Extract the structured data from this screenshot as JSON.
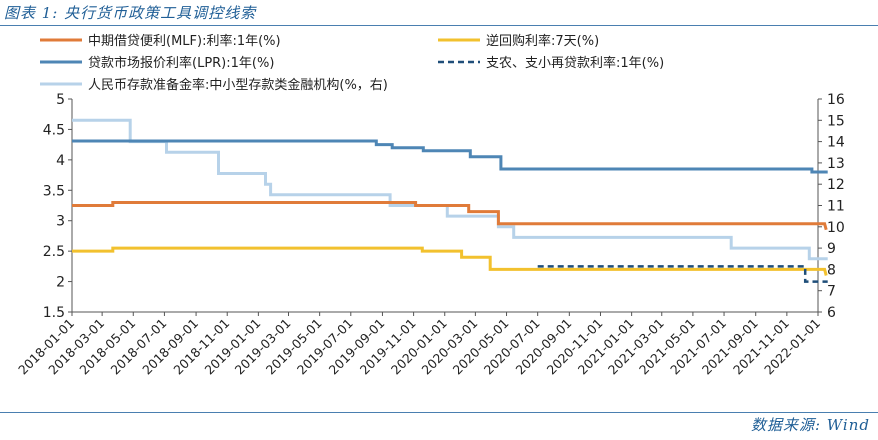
{
  "header": {
    "title": "图表 1:  央行货币政策工具调控线索"
  },
  "footer": {
    "source": "数据来源:  Wind"
  },
  "chart_data": {
    "type": "line",
    "legend": {
      "placement": "top",
      "items": [
        {
          "series": "mlf",
          "label": "中期借贷便利(MLF):利率:1年(%)"
        },
        {
          "series": "repo",
          "label": "逆回购利率:7天(%)"
        },
        {
          "series": "lpr",
          "label": "贷款市场报价利率(LPR):1年(%)"
        },
        {
          "series": "relend",
          "label": "支农、支小再贷款利率:1年(%)"
        },
        {
          "series": "rrr",
          "label": "人民币存款准备金率:中小型存款类金融机构(%，右)"
        }
      ]
    },
    "y_left": {
      "ylim": [
        1.5,
        5
      ],
      "ticks": [
        "1.5",
        "2",
        "2.5",
        "3",
        "3.5",
        "4",
        "4.5",
        "5"
      ]
    },
    "y_right": {
      "ylim": [
        6,
        16
      ],
      "ticks": [
        "6",
        "7",
        "8",
        "9",
        "10",
        "11",
        "12",
        "13",
        "14",
        "15",
        "16"
      ]
    },
    "x_range": [
      "2018-01-01",
      "2022-01-01"
    ],
    "x_ticks": [
      "2018-01-01",
      "2018-03-01",
      "2018-05-01",
      "2018-07-01",
      "2018-09-01",
      "2018-11-01",
      "2019-01-01",
      "2019-03-01",
      "2019-05-01",
      "2019-07-01",
      "2019-09-01",
      "2019-11-01",
      "2020-01-01",
      "2020-03-01",
      "2020-05-01",
      "2020-07-01",
      "2020-09-01",
      "2020-11-01",
      "2021-01-01",
      "2021-03-01",
      "2021-05-01",
      "2021-07-01",
      "2021-09-01",
      "2021-11-01",
      "2022-01-01"
    ],
    "series": [
      {
        "key": "mlf",
        "name": "中期借贷便利(MLF):利率:1年(%)",
        "color": "#e07b39",
        "axis": "left",
        "dash": "none",
        "points": [
          [
            "2018-01-01",
            3.25
          ],
          [
            "2018-03-22",
            3.25
          ],
          [
            "2018-03-22",
            3.3
          ],
          [
            "2019-11-05",
            3.3
          ],
          [
            "2019-11-05",
            3.25
          ],
          [
            "2020-02-17",
            3.25
          ],
          [
            "2020-02-17",
            3.15
          ],
          [
            "2020-04-15",
            3.15
          ],
          [
            "2020-04-15",
            2.95
          ],
          [
            "2022-01-14",
            2.95
          ],
          [
            "2022-01-17",
            2.85
          ]
        ]
      },
      {
        "key": "repo",
        "name": "逆回购利率:7天(%)",
        "color": "#f2c12e",
        "axis": "left",
        "dash": "none",
        "points": [
          [
            "2018-01-01",
            2.5
          ],
          [
            "2018-03-22",
            2.5
          ],
          [
            "2018-03-22",
            2.55
          ],
          [
            "2019-11-18",
            2.55
          ],
          [
            "2019-11-18",
            2.5
          ],
          [
            "2020-02-03",
            2.5
          ],
          [
            "2020-02-03",
            2.4
          ],
          [
            "2020-03-30",
            2.4
          ],
          [
            "2020-03-30",
            2.2
          ],
          [
            "2022-01-14",
            2.2
          ],
          [
            "2022-01-17",
            2.1
          ]
        ]
      },
      {
        "key": "lpr",
        "name": "贷款市场报价利率(LPR):1年(%)",
        "color": "#4e86b5",
        "axis": "left",
        "dash": "none",
        "points": [
          [
            "2018-01-01",
            4.31
          ],
          [
            "2018-04-20",
            4.31
          ],
          [
            "2018-04-20",
            4.31
          ],
          [
            "2019-08-20",
            4.31
          ],
          [
            "2019-08-20",
            4.25
          ],
          [
            "2019-09-20",
            4.25
          ],
          [
            "2019-09-20",
            4.2
          ],
          [
            "2019-11-20",
            4.2
          ],
          [
            "2019-11-20",
            4.15
          ],
          [
            "2020-02-20",
            4.15
          ],
          [
            "2020-02-20",
            4.05
          ],
          [
            "2020-04-20",
            4.05
          ],
          [
            "2020-04-20",
            3.85
          ],
          [
            "2021-12-20",
            3.85
          ],
          [
            "2021-12-20",
            3.8
          ],
          [
            "2022-01-20",
            3.8
          ]
        ]
      },
      {
        "key": "relend",
        "name": "支农、支小再贷款利率:1年(%)",
        "color": "#1f4e79",
        "axis": "left",
        "dash": "6,4",
        "points": [
          [
            "2020-07-01",
            2.25
          ],
          [
            "2021-12-07",
            2.25
          ],
          [
            "2021-12-07",
            2.0
          ],
          [
            "2022-01-20",
            2.0
          ]
        ]
      },
      {
        "key": "rrr",
        "name": "人民币存款准备金率:中小型存款类金融机构(%，右)",
        "color": "#b7d2e9",
        "axis": "right",
        "dash": "none",
        "points": [
          [
            "2018-01-01",
            15.0
          ],
          [
            "2018-04-25",
            15.0
          ],
          [
            "2018-04-25",
            14.0
          ],
          [
            "2018-07-05",
            14.0
          ],
          [
            "2018-07-05",
            13.5
          ],
          [
            "2018-10-15",
            13.5
          ],
          [
            "2018-10-15",
            12.5
          ],
          [
            "2019-01-15",
            12.5
          ],
          [
            "2019-01-15",
            12.0
          ],
          [
            "2019-01-25",
            12.0
          ],
          [
            "2019-01-25",
            11.5
          ],
          [
            "2019-09-16",
            11.5
          ],
          [
            "2019-09-16",
            11.0
          ],
          [
            "2020-01-06",
            11.0
          ],
          [
            "2020-01-06",
            10.5
          ],
          [
            "2020-04-15",
            10.5
          ],
          [
            "2020-04-15",
            10.0
          ],
          [
            "2020-05-15",
            10.0
          ],
          [
            "2020-05-15",
            9.5
          ],
          [
            "2021-07-15",
            9.5
          ],
          [
            "2021-07-15",
            9.0
          ],
          [
            "2021-12-15",
            9.0
          ],
          [
            "2021-12-15",
            8.5
          ],
          [
            "2022-01-20",
            8.5
          ]
        ]
      }
    ]
  }
}
